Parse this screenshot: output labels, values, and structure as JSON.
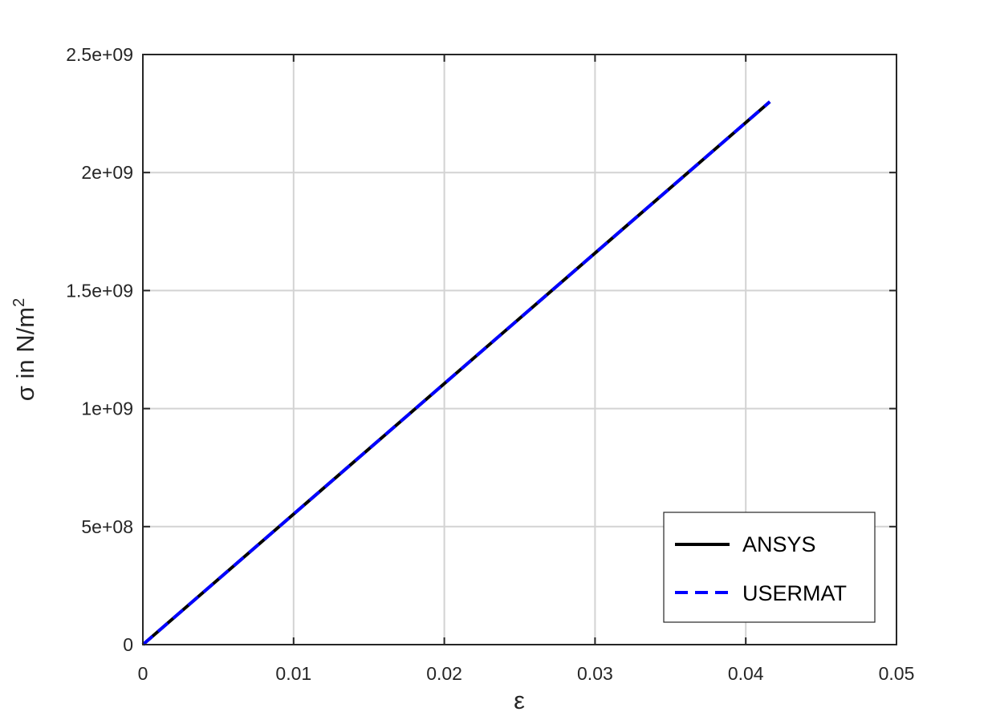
{
  "chart_data": {
    "type": "line",
    "xlabel": "ε",
    "ylabel": {
      "main": "σ in N/m",
      "superscript": "2"
    },
    "xlim": [
      0,
      0.05
    ],
    "ylim": [
      0,
      2500000000
    ],
    "xticks": [
      0,
      0.01,
      0.02,
      0.03,
      0.04,
      0.05
    ],
    "xtick_labels": [
      "0",
      "0.01",
      "0.02",
      "0.03",
      "0.04",
      "0.05"
    ],
    "yticks": [
      0,
      500000000,
      1000000000,
      1500000000,
      2000000000,
      2500000000
    ],
    "ytick_labels": [
      "0",
      "5e+08",
      "1e+09",
      "1.5e+09",
      "2e+09",
      "2.5e+09"
    ],
    "grid": true,
    "legend_position": "bottom-right",
    "series": [
      {
        "name": "ANSYS",
        "color": "#000000",
        "style": "solid",
        "x": [
          0,
          0.0416
        ],
        "y": [
          0,
          2300000000
        ]
      },
      {
        "name": "USERMAT",
        "color": "#0000ff",
        "style": "dashed",
        "x": [
          0,
          0.0416
        ],
        "y": [
          0,
          2300000000
        ]
      }
    ]
  }
}
